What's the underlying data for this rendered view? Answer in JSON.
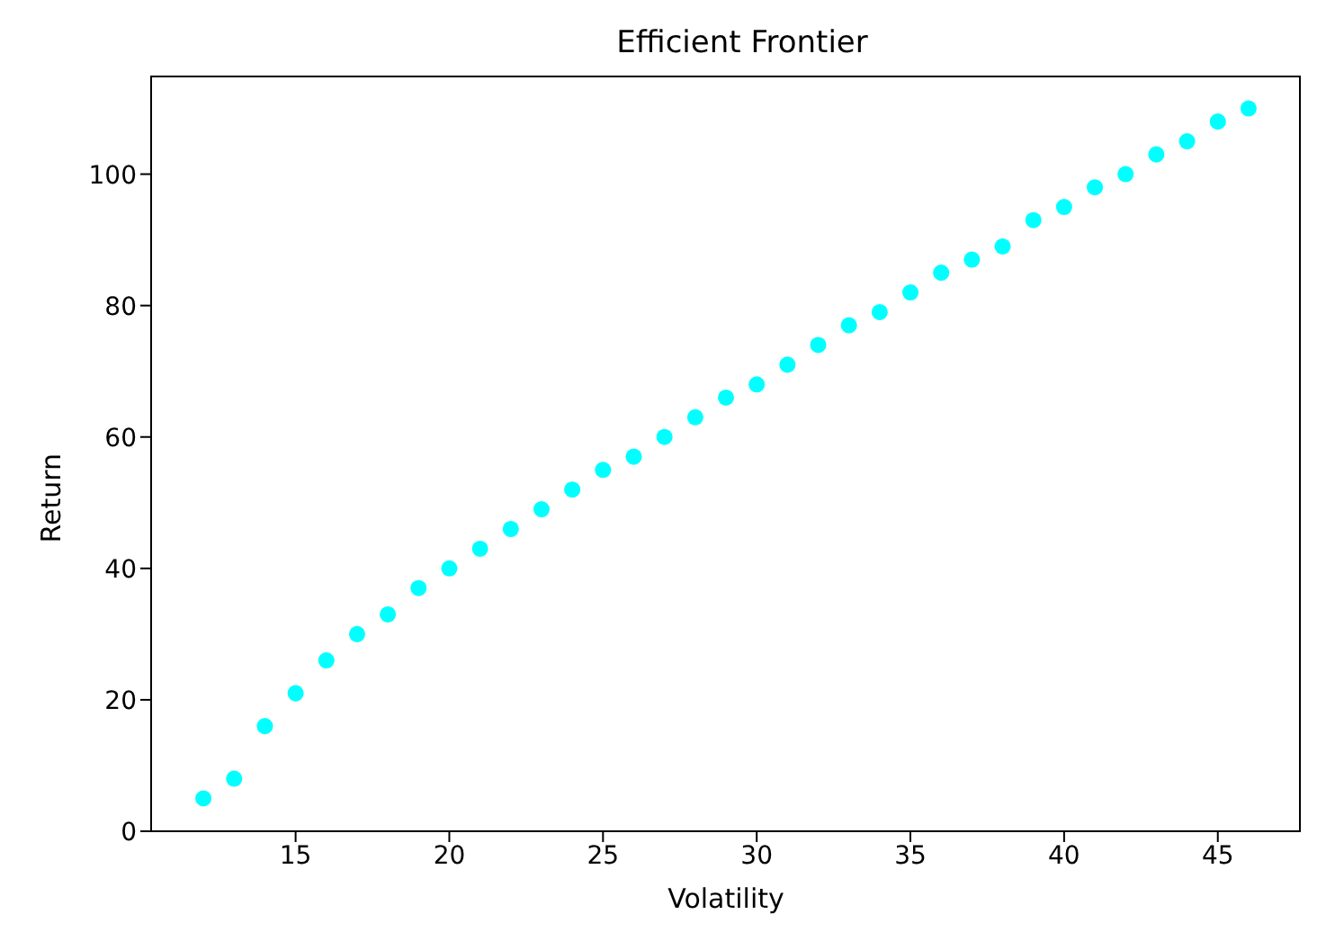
{
  "chart_data": {
    "type": "scatter",
    "title": "Efficient Frontier",
    "xlabel": "Volatility",
    "ylabel": "Return",
    "x": [
      12,
      13,
      14,
      15,
      16,
      17,
      18,
      19,
      20,
      21,
      22,
      23,
      24,
      25,
      26,
      27,
      28,
      29,
      30,
      31,
      32,
      33,
      34,
      35,
      36,
      37,
      38,
      39,
      40,
      41,
      42,
      43,
      44,
      45,
      46
    ],
    "series": [
      {
        "color": "#00ffff",
        "values": [
          5,
          8,
          16,
          21,
          26,
          30,
          33,
          37,
          40,
          43,
          46,
          49,
          52,
          55,
          57,
          60,
          63,
          66,
          68,
          71,
          74,
          77,
          79,
          82,
          85,
          87,
          89,
          93,
          95,
          98,
          100,
          103,
          105,
          108,
          110
        ]
      }
    ],
    "xlim": [
      10.3,
      47.7
    ],
    "xticks": [
      15,
      20,
      25,
      30,
      35,
      40,
      45
    ],
    "ylim": [
      0,
      115
    ],
    "yticks": [
      0,
      20,
      40,
      60,
      80,
      100
    ],
    "grid": false,
    "marker": "circle"
  }
}
